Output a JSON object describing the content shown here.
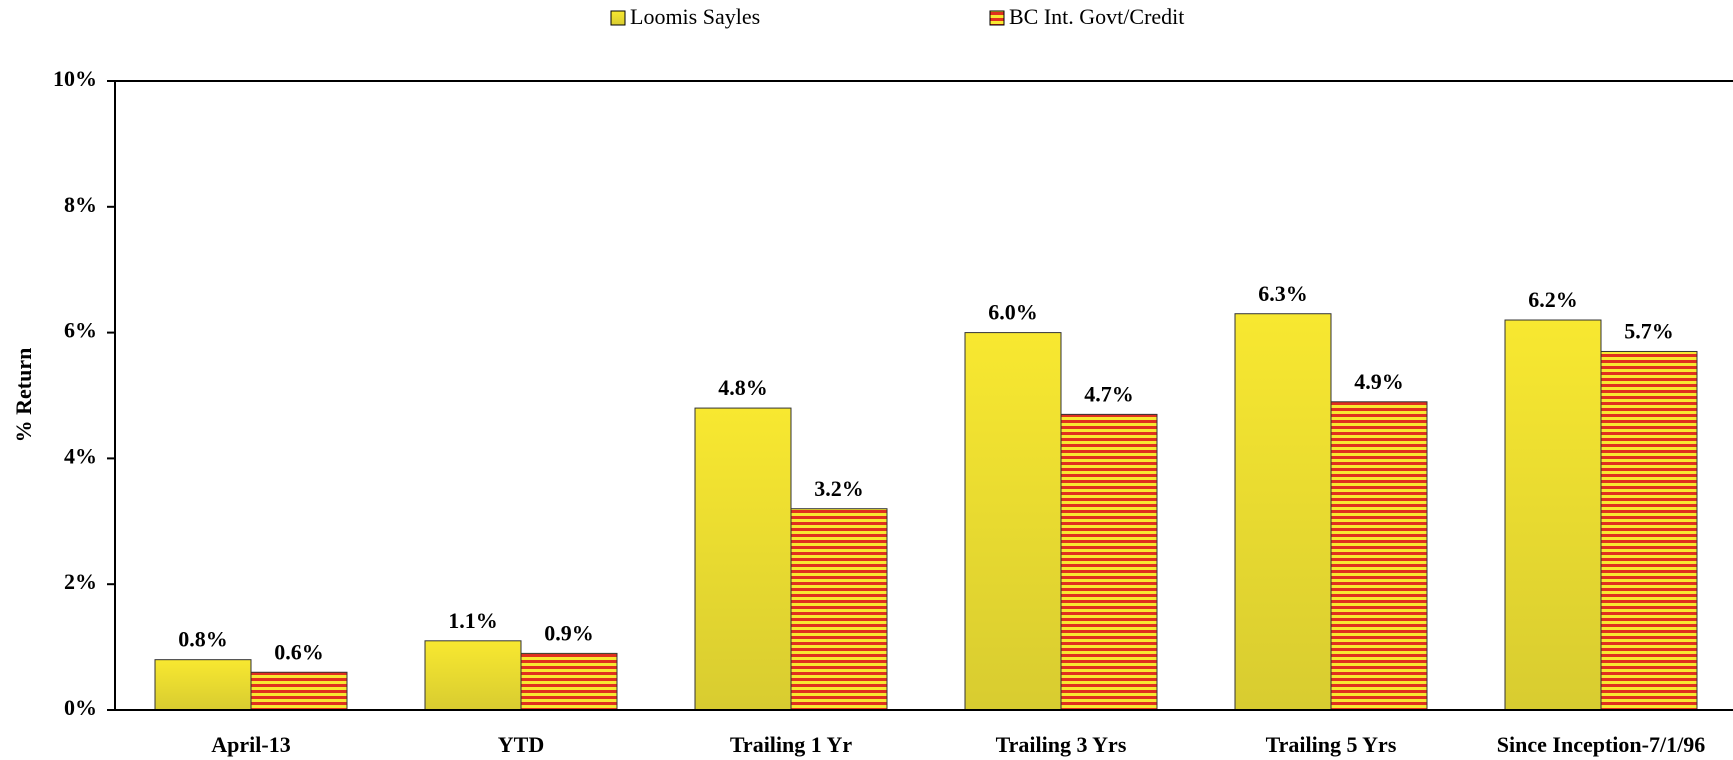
{
  "chart_data": {
    "type": "bar",
    "y_label": "% Return",
    "categories": [
      "April-13",
      "YTD",
      "Trailing 1 Yr",
      "Trailing 3 Yrs",
      "Trailing 5 Yrs",
      "Since Inception-7/1/96"
    ],
    "series": [
      {
        "name": "Loomis Sayles",
        "color": "#f8e830",
        "values": [
          0.8,
          1.1,
          4.8,
          6.0,
          6.3,
          6.2
        ],
        "value_labels": [
          "0.8%",
          "1.1%",
          "4.8%",
          "6.0%",
          "6.3%",
          "6.2%"
        ]
      },
      {
        "name": "BC Int. Govt/Credit",
        "color": "#e0301e",
        "pattern": "horizontal-stripes",
        "values": [
          0.6,
          0.9,
          3.2,
          4.7,
          4.9,
          5.7
        ],
        "value_labels": [
          "0.6%",
          "0.9%",
          "3.2%",
          "4.7%",
          "4.9%",
          "5.7%"
        ]
      }
    ],
    "ylim": [
      0,
      10
    ],
    "yticks": [
      {
        "value": 0,
        "label": "0%"
      },
      {
        "value": 2,
        "label": "2%"
      },
      {
        "value": 4,
        "label": "4%"
      },
      {
        "value": 6,
        "label": "6%"
      },
      {
        "value": 8,
        "label": "8%"
      },
      {
        "value": 10,
        "label": "10%"
      }
    ],
    "legend": "top"
  }
}
